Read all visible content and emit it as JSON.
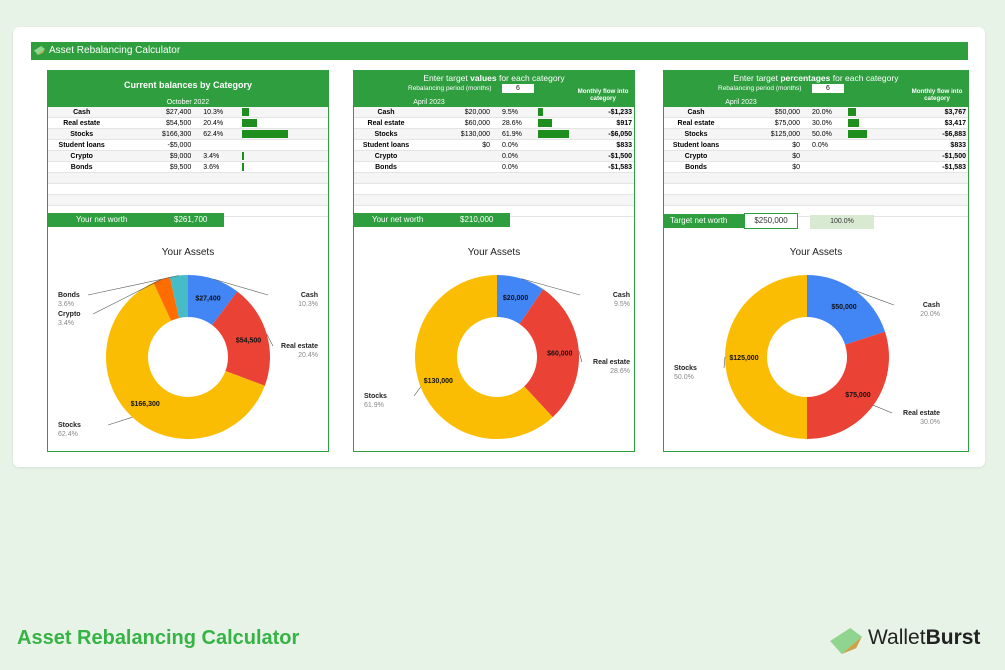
{
  "app": {
    "title": "Asset Rebalancing Calculator"
  },
  "footer": {
    "title": "Asset Rebalancing Calculator",
    "brand_light": "Wallet",
    "brand_bold": "Burst"
  },
  "colors": {
    "green": "#2e9e3e",
    "cash": "#4285f4",
    "realestate": "#ea4335",
    "stocks": "#fbbc04",
    "crypto": "#ff6d01",
    "bonds": "#46bdc6"
  },
  "panel1": {
    "title": "Current balances by Category",
    "date": "October 2022",
    "rows": [
      {
        "cat": "Cash",
        "val": "$27,400",
        "pct": "10.3%",
        "bar": 10.3
      },
      {
        "cat": "Real estate",
        "val": "$54,500",
        "pct": "20.4%",
        "bar": 20.4
      },
      {
        "cat": "Stocks",
        "val": "$166,300",
        "pct": "62.4%",
        "bar": 62.4
      },
      {
        "cat": "Student loans",
        "val": "-$5,000",
        "pct": "",
        "bar": 0
      },
      {
        "cat": "Crypto",
        "val": "$9,000",
        "pct": "3.4%",
        "bar": 3.4
      },
      {
        "cat": "Bonds",
        "val": "$9,500",
        "pct": "3.6%",
        "bar": 3.6
      }
    ],
    "worth_label": "Your net worth",
    "worth_value": "$261,700",
    "chart_title": "Your Assets",
    "labels": {
      "cash": "Cash",
      "cash_pct": "10.3%",
      "cash_val": "$27,400",
      "re": "Real estate",
      "re_pct": "20.4%",
      "re_val": "$54,500",
      "stocks": "Stocks",
      "stocks_pct": "62.4%",
      "stocks_val": "$166,300",
      "crypto": "Crypto",
      "crypto_pct": "3.4%",
      "bonds": "Bonds",
      "bonds_pct": "3.6%"
    }
  },
  "panel2": {
    "title_pre": "Enter target ",
    "title_bold": "values",
    "title_post": " for each category",
    "period_label": "Rebalancing period (months)",
    "period_value": "6",
    "date": "April 2023",
    "flow_header": "Monthly flow into category",
    "rows": [
      {
        "cat": "Cash",
        "val": "$20,000",
        "pct": "9.5%",
        "bar": 9.5,
        "flow": "-$1,233"
      },
      {
        "cat": "Real estate",
        "val": "$60,000",
        "pct": "28.6%",
        "bar": 28.6,
        "flow": "$917"
      },
      {
        "cat": "Stocks",
        "val": "$130,000",
        "pct": "61.9%",
        "bar": 61.9,
        "flow": "-$6,050"
      },
      {
        "cat": "Student loans",
        "val": "$0",
        "pct": "0.0%",
        "bar": 0,
        "flow": "$833"
      },
      {
        "cat": "Crypto",
        "val": "",
        "pct": "0.0%",
        "bar": 0,
        "flow": "-$1,500"
      },
      {
        "cat": "Bonds",
        "val": "",
        "pct": "0.0%",
        "bar": 0,
        "flow": "-$1,583"
      }
    ],
    "worth_label": "Your net worth",
    "worth_value": "$210,000",
    "chart_title": "Your Assets",
    "labels": {
      "cash": "Cash",
      "cash_pct": "9.5%",
      "cash_val": "$20,000",
      "re": "Real estate",
      "re_pct": "28.6%",
      "re_val": "$60,000",
      "stocks": "Stocks",
      "stocks_pct": "61.9%",
      "stocks_val": "$130,000"
    }
  },
  "panel3": {
    "title_pre": "Enter target ",
    "title_bold": "percentages",
    "title_post": " for each category",
    "period_label": "Rebalancing period (months)",
    "period_value": "6",
    "date": "April 2023",
    "flow_header": "Monthly flow into category",
    "rows": [
      {
        "cat": "Cash",
        "val": "$50,000",
        "pct": "20.0%",
        "bar": 20,
        "flow": "$3,767"
      },
      {
        "cat": "Real estate",
        "val": "$75,000",
        "pct": "30.0%",
        "bar": 30,
        "flow": "$3,417"
      },
      {
        "cat": "Stocks",
        "val": "$125,000",
        "pct": "50.0%",
        "bar": 50,
        "flow": "-$6,883"
      },
      {
        "cat": "Student loans",
        "val": "$0",
        "pct": "0.0%",
        "bar": 0,
        "flow": "$833"
      },
      {
        "cat": "Crypto",
        "val": "$0",
        "pct": "",
        "bar": 0,
        "flow": "-$1,500"
      },
      {
        "cat": "Bonds",
        "val": "$0",
        "pct": "",
        "bar": 0,
        "flow": "-$1,583"
      }
    ],
    "worth_label": "Target net worth",
    "worth_value": "$250,000",
    "worth_pct": "100.0%",
    "chart_title": "Your Assets",
    "labels": {
      "cash": "Cash",
      "cash_pct": "20.0%",
      "cash_val": "$50,000",
      "re": "Real estate",
      "re_pct": "30.0%",
      "re_val": "$75,000",
      "stocks": "Stocks",
      "stocks_pct": "50.0%",
      "stocks_val": "$125,000"
    }
  },
  "chart_data": [
    {
      "type": "pie",
      "title": "Your Assets",
      "categories": [
        "Cash",
        "Real estate",
        "Stocks",
        "Crypto",
        "Bonds"
      ],
      "values": [
        27400,
        54500,
        166300,
        9000,
        9500
      ],
      "percent": [
        10.3,
        20.4,
        62.4,
        3.4,
        3.6
      ]
    },
    {
      "type": "pie",
      "title": "Your Assets",
      "categories": [
        "Cash",
        "Real estate",
        "Stocks"
      ],
      "values": [
        20000,
        60000,
        130000
      ],
      "percent": [
        9.5,
        28.6,
        61.9
      ]
    },
    {
      "type": "pie",
      "title": "Your Assets",
      "categories": [
        "Cash",
        "Real estate",
        "Stocks"
      ],
      "values": [
        50000,
        75000,
        125000
      ],
      "percent": [
        20.0,
        30.0,
        50.0
      ]
    }
  ]
}
